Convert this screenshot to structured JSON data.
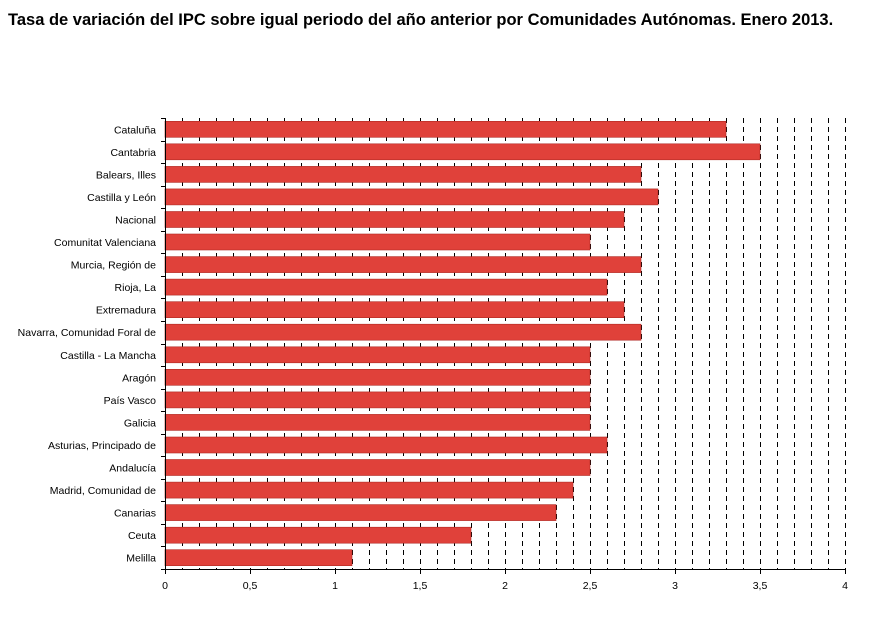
{
  "title": "Tasa de variación del IPC sobre igual periodo del año anterior por Comunidades Autónomas. Enero 2013.",
  "chart_data": {
    "type": "bar",
    "orientation": "horizontal",
    "title": "Tasa de variación del IPC sobre igual periodo del año anterior por Comunidades Autónomas. Enero 2013.",
    "categories": [
      "Cataluña",
      "Cantabria",
      "Balears, Illes",
      "Castilla y León",
      "Nacional",
      "Comunitat Valenciana",
      "Murcia, Región de",
      "Rioja, La",
      "Extremadura",
      "Navarra, Comunidad Foral de",
      "Castilla - La Mancha",
      "Aragón",
      "País Vasco",
      "Galicia",
      "Asturias, Principado de",
      "Andalucía",
      "Madrid, Comunidad de",
      "Canarias",
      "Ceuta",
      "Melilla"
    ],
    "values": [
      3.3,
      3.5,
      2.8,
      2.9,
      2.7,
      2.5,
      2.8,
      2.6,
      2.7,
      2.8,
      2.5,
      2.5,
      2.5,
      2.5,
      2.6,
      2.5,
      2.4,
      2.3,
      1.8,
      1.1
    ],
    "xlim": [
      0,
      4
    ],
    "xticks": [
      "0",
      "0,5",
      "1",
      "1,5",
      "2",
      "2,5",
      "3",
      "3,5",
      "4"
    ],
    "grid": "vertical dashed",
    "colors": {
      "bar": "#e0413a",
      "bar_edge": "#b02a24"
    }
  }
}
